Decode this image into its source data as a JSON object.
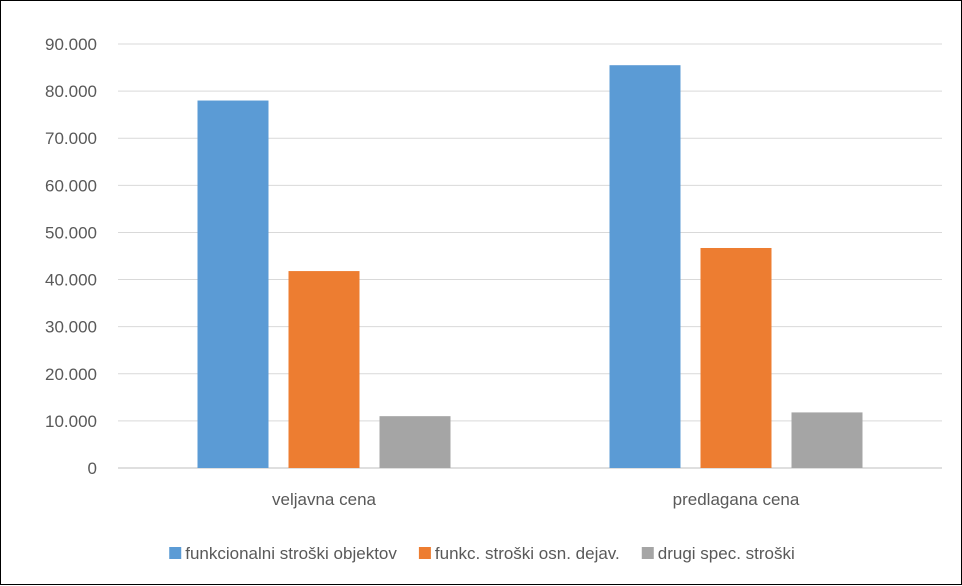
{
  "chart_data": {
    "type": "bar",
    "categories": [
      "veljavna cena",
      "predlagana cena"
    ],
    "series": [
      {
        "name": "funkcionalni stroški objektov",
        "color": "#5B9BD5",
        "values": [
          78000,
          85500
        ]
      },
      {
        "name": "funkc. stroški osn. dejav.",
        "color": "#ED7D31",
        "values": [
          41800,
          46700
        ]
      },
      {
        "name": "drugi spec. stroški",
        "color": "#A5A5A5",
        "values": [
          11000,
          11800
        ]
      }
    ],
    "ylim": [
      0,
      90000
    ],
    "yticks": [
      0,
      10000,
      20000,
      30000,
      40000,
      50000,
      60000,
      70000,
      80000,
      90000
    ],
    "ytick_labels": [
      "0",
      "10.000",
      "20.000",
      "30.000",
      "40.000",
      "50.000",
      "60.000",
      "70.000",
      "80.000",
      "90.000"
    ],
    "grid": true,
    "legend_position": "bottom",
    "title": "",
    "xlabel": "",
    "ylabel": ""
  }
}
